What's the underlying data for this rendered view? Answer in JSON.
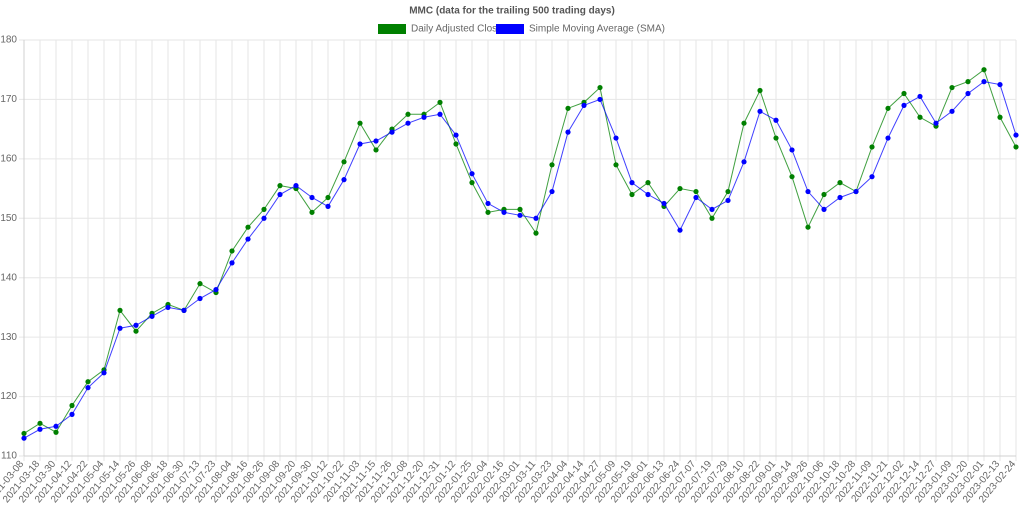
{
  "chart_data": {
    "type": "line",
    "title": "MMC (data for the trailing 500 trading days)",
    "xlabel": "",
    "ylabel": "",
    "ylim": [
      110,
      180
    ],
    "y_ticks": [
      110,
      120,
      130,
      140,
      150,
      160,
      170,
      180
    ],
    "grid": true,
    "legend_position": "top",
    "x_tick_labels": [
      "2021-03-08",
      "2021-03-18",
      "2021-03-30",
      "2021-04-12",
      "2021-04-22",
      "2021-05-04",
      "2021-05-14",
      "2021-05-26",
      "2021-06-08",
      "2021-06-18",
      "2021-06-30",
      "2021-07-13",
      "2021-07-23",
      "2021-08-04",
      "2021-08-16",
      "2021-08-26",
      "2021-09-08",
      "2021-09-20",
      "2021-09-30",
      "2021-10-12",
      "2021-10-22",
      "2021-11-03",
      "2021-11-15",
      "2021-11-26",
      "2021-12-08",
      "2021-12-20",
      "2021-12-31",
      "2022-01-12",
      "2022-01-25",
      "2022-02-04",
      "2022-02-16",
      "2022-03-01",
      "2022-03-11",
      "2022-03-23",
      "2022-04-04",
      "2022-04-14",
      "2022-04-27",
      "2022-05-09",
      "2022-05-19",
      "2022-06-01",
      "2022-06-13",
      "2022-06-24",
      "2022-07-07",
      "2022-07-19",
      "2022-07-29",
      "2022-08-10",
      "2022-08-22",
      "2022-09-01",
      "2022-09-14",
      "2022-09-26",
      "2022-10-06",
      "2022-10-18",
      "2022-10-28",
      "2022-11-09",
      "2022-11-21",
      "2022-12-02",
      "2022-12-14",
      "2022-12-27",
      "2023-01-09",
      "2023-01-20",
      "2023-02-01",
      "2023-02-13",
      "2023-02-24"
    ],
    "series": [
      {
        "name": "Daily Adjusted Close",
        "color": "#008000",
        "x": [
          "2021-03-08",
          "2021-03-18",
          "2021-03-30",
          "2021-04-12",
          "2021-04-22",
          "2021-05-04",
          "2021-05-14",
          "2021-05-26",
          "2021-06-08",
          "2021-06-18",
          "2021-06-30",
          "2021-07-13",
          "2021-07-23",
          "2021-08-04",
          "2021-08-16",
          "2021-08-26",
          "2021-09-08",
          "2021-09-20",
          "2021-09-30",
          "2021-10-12",
          "2021-10-22",
          "2021-11-03",
          "2021-11-15",
          "2021-11-26",
          "2021-12-08",
          "2021-12-20",
          "2021-12-31",
          "2022-01-12",
          "2022-01-25",
          "2022-02-04",
          "2022-02-16",
          "2022-03-01",
          "2022-03-11",
          "2022-03-23",
          "2022-04-04",
          "2022-04-14",
          "2022-04-27",
          "2022-05-09",
          "2022-05-19",
          "2022-06-01",
          "2022-06-13",
          "2022-06-24",
          "2022-07-07",
          "2022-07-19",
          "2022-07-29",
          "2022-08-10",
          "2022-08-22",
          "2022-09-01",
          "2022-09-14",
          "2022-09-26",
          "2022-10-06",
          "2022-10-18",
          "2022-10-28",
          "2022-11-09",
          "2022-11-21",
          "2022-12-02",
          "2022-12-14",
          "2022-12-27",
          "2023-01-09",
          "2023-01-20",
          "2023-02-01",
          "2023-02-13",
          "2023-02-24"
        ],
        "values": [
          113.8,
          115.5,
          114.0,
          118.5,
          122.5,
          124.5,
          134.5,
          131.0,
          134.0,
          135.5,
          134.5,
          139.0,
          137.5,
          144.5,
          148.5,
          151.5,
          155.5,
          155.0,
          151.0,
          153.5,
          159.5,
          166.0,
          161.5,
          165.0,
          167.5,
          167.5,
          169.5,
          162.5,
          156.0,
          151.0,
          151.5,
          151.5,
          147.5,
          159.0,
          168.5,
          169.5,
          172.0,
          159.0,
          154.0,
          156.0,
          152.0,
          155.0,
          154.5,
          150.0,
          154.5,
          166.0,
          171.5,
          163.5,
          157.0,
          148.5,
          154.0,
          156.0,
          154.5,
          162.0,
          168.5,
          171.0,
          167.0,
          165.5,
          172.0,
          173.0,
          175.0,
          167.0,
          162.0
        ]
      },
      {
        "name": "Simple Moving Average (SMA)",
        "color": "#0000ff",
        "x": [
          "2021-03-08",
          "2021-03-18",
          "2021-03-30",
          "2021-04-12",
          "2021-04-22",
          "2021-05-04",
          "2021-05-14",
          "2021-05-26",
          "2021-06-08",
          "2021-06-18",
          "2021-06-30",
          "2021-07-13",
          "2021-07-23",
          "2021-08-04",
          "2021-08-16",
          "2021-08-26",
          "2021-09-08",
          "2021-09-20",
          "2021-09-30",
          "2021-10-12",
          "2021-10-22",
          "2021-11-03",
          "2021-11-15",
          "2021-11-26",
          "2021-12-08",
          "2021-12-20",
          "2021-12-31",
          "2022-01-12",
          "2022-01-25",
          "2022-02-04",
          "2022-02-16",
          "2022-03-01",
          "2022-03-11",
          "2022-03-23",
          "2022-04-04",
          "2022-04-14",
          "2022-04-27",
          "2022-05-09",
          "2022-05-19",
          "2022-06-01",
          "2022-06-13",
          "2022-06-24",
          "2022-07-07",
          "2022-07-19",
          "2022-07-29",
          "2022-08-10",
          "2022-08-22",
          "2022-09-01",
          "2022-09-14",
          "2022-09-26",
          "2022-10-06",
          "2022-10-18",
          "2022-10-28",
          "2022-11-09",
          "2022-11-21",
          "2022-12-02",
          "2022-12-14",
          "2022-12-27",
          "2023-01-09",
          "2023-01-20",
          "2023-02-01",
          "2023-02-13",
          "2023-02-24"
        ],
        "values": [
          113.0,
          114.5,
          115.0,
          117.0,
          121.5,
          124.0,
          131.5,
          132.0,
          133.5,
          135.0,
          134.5,
          136.5,
          138.0,
          142.5,
          146.5,
          150.0,
          154.0,
          155.5,
          153.5,
          152.0,
          156.5,
          162.5,
          163.0,
          164.5,
          166.0,
          167.0,
          167.5,
          164.0,
          157.5,
          152.5,
          151.0,
          150.5,
          150.0,
          154.5,
          164.5,
          169.0,
          170.0,
          163.5,
          156.0,
          154.0,
          152.5,
          148.0,
          153.5,
          151.5,
          153.0,
          159.5,
          168.0,
          166.5,
          161.5,
          154.5,
          151.5,
          153.5,
          154.5,
          157.0,
          163.5,
          169.0,
          170.5,
          166.0,
          168.0,
          171.0,
          173.0,
          172.5,
          164.0
        ]
      }
    ]
  }
}
